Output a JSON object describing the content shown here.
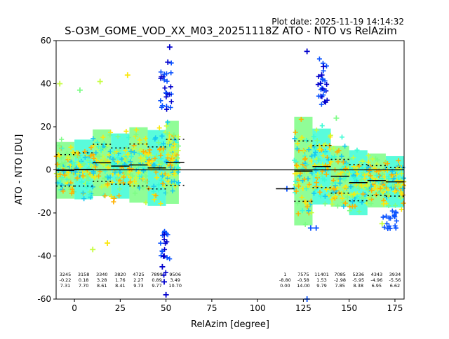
{
  "chart_data": {
    "type": "scatter",
    "title": "S-O3M_GOME_VOD_XX_M03_20251118Z ATO - NTO vs RelAzim",
    "plot_date": "Plot date: 2025-11-19 14:14:32",
    "xlabel": "RelAzim [degree]",
    "ylabel": "ATO - NTO [DU]",
    "xlim": [
      -10,
      180
    ],
    "ylim": [
      -60,
      60
    ],
    "x_ticks": [
      0,
      25,
      50,
      75,
      100,
      125,
      150,
      175
    ],
    "y_ticks": [
      -60,
      -40,
      -20,
      0,
      20,
      40,
      60
    ],
    "grid": false,
    "colormap": [
      "#0000cc",
      "#0a52ff",
      "#17c9f0",
      "#3cfcd5",
      "#7dfd85",
      "#c6fd40",
      "#fbe70d",
      "#ffb000"
    ],
    "bins": [
      {
        "x": -5,
        "count": "3245",
        "mean": "-0.22",
        "std": "7.31",
        "mean_val": -0.22,
        "std_val": 7.31
      },
      {
        "x": 5,
        "count": "3158",
        "mean": "0.18",
        "std": "7.70",
        "mean_val": 0.18,
        "std_val": 7.7
      },
      {
        "x": 15,
        "count": "3340",
        "mean": "3.28",
        "std": "8.61",
        "mean_val": 3.28,
        "std_val": 8.61
      },
      {
        "x": 25,
        "count": "3820",
        "mean": "1.76",
        "std": "8.41",
        "mean_val": 1.76,
        "std_val": 8.41
      },
      {
        "x": 35,
        "count": "4725",
        "mean": "2.27",
        "std": "9.73",
        "mean_val": 2.27,
        "std_val": 9.73
      },
      {
        "x": 45,
        "count": "7899",
        "mean": "0.89",
        "std": "9.77",
        "mean_val": 0.89,
        "std_val": 9.77
      },
      {
        "x": 55,
        "count": "9506",
        "mean": "3.49",
        "std": "10.70",
        "mean_val": 3.49,
        "std_val": 10.7
      },
      {
        "x": 115,
        "count": "1",
        "mean": "-8.80",
        "std": "0.00",
        "mean_val": -8.8,
        "std_val": 0.0
      },
      {
        "x": 125,
        "count": "7575",
        "mean": "-0.58",
        "std": "14.00",
        "mean_val": -0.58,
        "std_val": 14.0
      },
      {
        "x": 135,
        "count": "11401",
        "mean": "1.53",
        "std": "9.79",
        "mean_val": 1.53,
        "std_val": 9.79
      },
      {
        "x": 145,
        "count": "7085",
        "mean": "-2.98",
        "std": "7.85",
        "mean_val": -2.98,
        "std_val": 7.85
      },
      {
        "x": 155,
        "count": "5236",
        "mean": "-5.95",
        "std": "8.38",
        "mean_val": -5.95,
        "std_val": 8.38
      },
      {
        "x": 165,
        "count": "4343",
        "mean": "-4.96",
        "std": "6.95",
        "mean_val": -4.96,
        "std_val": 6.95
      },
      {
        "x": 175,
        "count": "3934",
        "mean": "-5.56",
        "std": "6.62",
        "mean_val": -5.56,
        "std_val": 6.62
      }
    ],
    "single_point": {
      "x": 116,
      "y": -8.8
    },
    "outliers": [
      {
        "x": 52,
        "y": 57
      },
      {
        "x": 51,
        "y": 50
      },
      {
        "x": 50,
        "y": -58
      },
      {
        "x": 49,
        "y": -52
      },
      {
        "x": 48,
        "y": -45
      },
      {
        "x": 49,
        "y": -40
      },
      {
        "x": 136,
        "y": 48
      },
      {
        "x": 135,
        "y": 44
      },
      {
        "x": 129,
        "y": -27
      },
      {
        "x": 132,
        "y": -27
      },
      {
        "x": -8,
        "y": 40
      },
      {
        "x": 29,
        "y": 44
      },
      {
        "x": 3,
        "y": 37
      },
      {
        "x": 14,
        "y": 41
      },
      {
        "x": 127,
        "y": 55
      },
      {
        "x": 127,
        "y": -60
      },
      {
        "x": 10,
        "y": -37
      },
      {
        "x": 18,
        "y": -34
      },
      {
        "x": 143,
        "y": 24
      },
      {
        "x": 168,
        "y": -25
      }
    ]
  }
}
